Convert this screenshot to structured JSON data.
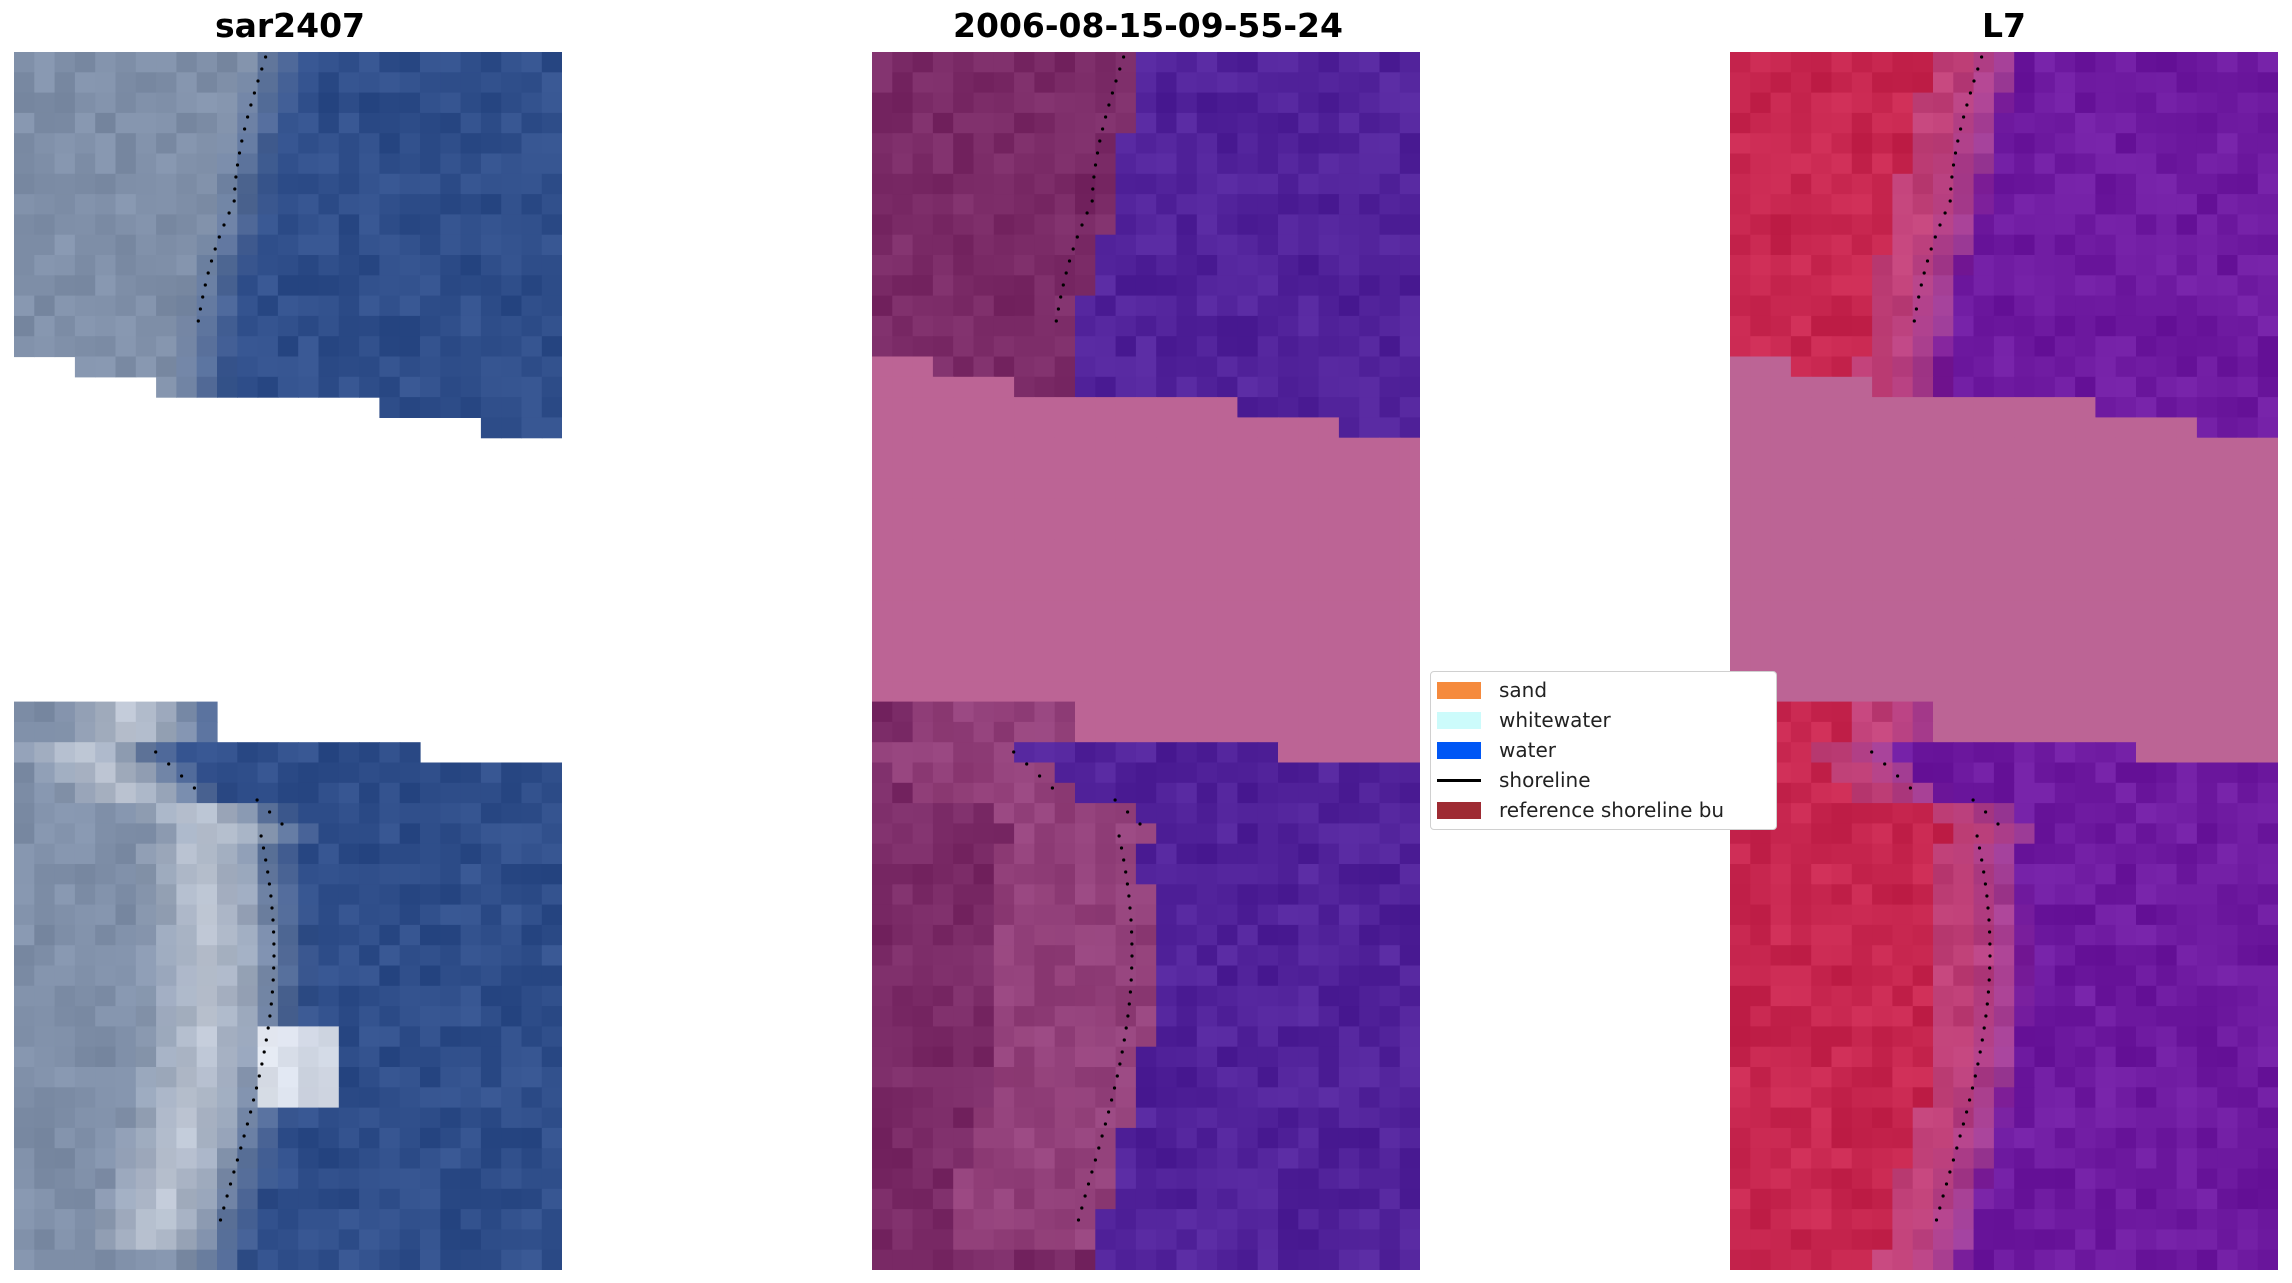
{
  "panels": [
    {
      "title": "sar2407",
      "style": "rgb"
    },
    {
      "title": "2006-08-15-09-55-24",
      "style": "classified"
    },
    {
      "title": "L7",
      "style": "ndwi"
    }
  ],
  "legend": {
    "items": [
      {
        "label": "sand",
        "kind": "patch",
        "color": "#f58a3d"
      },
      {
        "label": "whitewater",
        "kind": "patch",
        "color": "#ccfbfb"
      },
      {
        "label": "water",
        "kind": "patch",
        "color": "#0057f5"
      },
      {
        "label": "shoreline",
        "kind": "line",
        "color": "#000000"
      },
      {
        "label": "reference shoreline bu",
        "kind": "patch",
        "color": "#9e2b33"
      }
    ]
  },
  "colors": {
    "rgb_land": "#7f8fa8",
    "rgb_water": "#2f4e8a",
    "rgb_white": "#f2f4f8",
    "class_land": "#7a2a66",
    "class_water": "#51229a",
    "nodata": "#bc6495",
    "ndwi_land": "#c7264f",
    "ndwi_water": "#6e1aa0"
  }
}
